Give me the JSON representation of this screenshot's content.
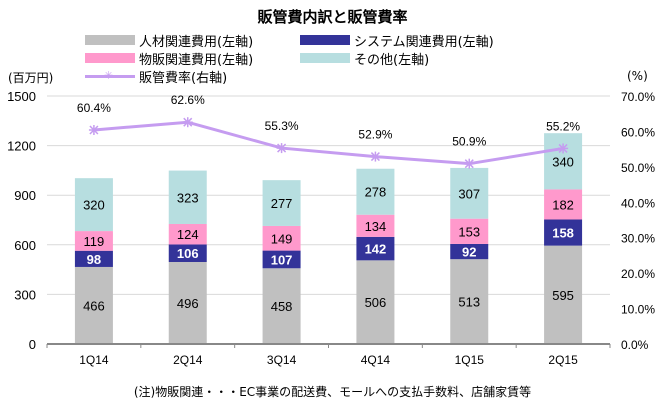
{
  "chart_data": {
    "type": "bar",
    "stacked": true,
    "title": "販管費内訳と販管費率",
    "categories": [
      "1Q14",
      "2Q14",
      "3Q14",
      "4Q14",
      "1Q15",
      "2Q15"
    ],
    "series": [
      {
        "name": "人材関連費用(左軸)",
        "color": "#c0c0c0",
        "axis": "left",
        "values": [
          466,
          496,
          458,
          506,
          513,
          595
        ]
      },
      {
        "name": "システム関連費用(左軸)",
        "color": "#333399",
        "axis": "left",
        "values": [
          98,
          106,
          107,
          142,
          92,
          158
        ]
      },
      {
        "name": "物販関連費用(左軸)",
        "color": "#ff99cc",
        "axis": "left",
        "values": [
          119,
          124,
          149,
          134,
          153,
          182
        ]
      },
      {
        "name": "その他(左軸)",
        "color": "#b7dee0",
        "axis": "left",
        "values": [
          320,
          323,
          277,
          278,
          307,
          340
        ]
      }
    ],
    "line_series": {
      "name": "販管費率(右軸)",
      "color": "#c59cf0",
      "axis": "right",
      "values": [
        60.4,
        62.6,
        55.3,
        52.9,
        50.9,
        55.2
      ],
      "labels": [
        "60.4%",
        "62.6%",
        "55.3%",
        "52.9%",
        "50.9%",
        "55.2%"
      ]
    },
    "ylabel_left": "(百万円)",
    "ylabel_right": "(%)",
    "ylim_left": [
      0,
      1500
    ],
    "ylim_right": [
      0,
      70
    ],
    "yticks_left": [
      "0",
      "300",
      "600",
      "900",
      "1200",
      "1500"
    ],
    "yticks_right": [
      "0.0%",
      "10.0%",
      "20.0%",
      "30.0%",
      "40.0%",
      "50.0%",
      "60.0%",
      "70.0%"
    ],
    "grid": true,
    "legend_placement": "top"
  },
  "footnote": "(注)物販関連・・・EC事業の配送費、モールへの支払手数料、店舗家賃等"
}
